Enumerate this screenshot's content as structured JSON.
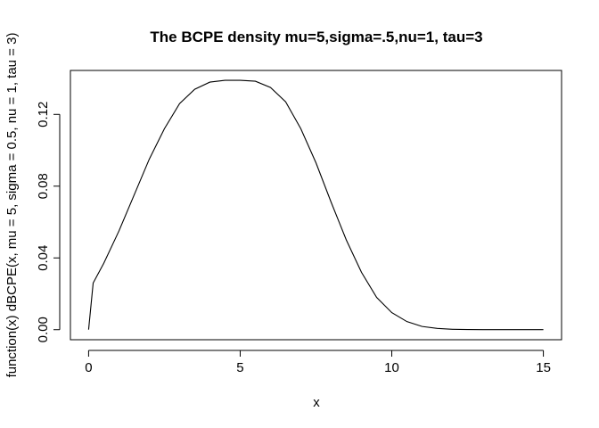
{
  "chart_data": {
    "type": "line",
    "title": "The BCPE  density mu=5,sigma=.5,nu=1, tau=3",
    "xlabel": "x",
    "ylabel": "function(x) dBCPE(x, mu = 5, sigma = 0.5, nu = 1, tau = 3)",
    "xlim": [
      -0.6,
      15.6
    ],
    "ylim": [
      -0.0056,
      0.1445
    ],
    "x_ticks": [
      0,
      5,
      10,
      15
    ],
    "x_tick_labels": [
      "0",
      "5",
      "10",
      "15"
    ],
    "y_ticks": [
      0.0,
      0.04,
      0.08,
      0.12
    ],
    "y_tick_labels": [
      "0.00",
      "0.04",
      "0.08",
      "0.12"
    ],
    "grid": false,
    "legend": "none",
    "series": [
      {
        "x": [
          0,
          0.15,
          0.5,
          1,
          1.5,
          2,
          2.5,
          3,
          3.5,
          4,
          4.5,
          5,
          5.5,
          6,
          6.5,
          7,
          7.5,
          8,
          8.5,
          9,
          9.5,
          10,
          10.5,
          11,
          11.5,
          12,
          12.5,
          13,
          14,
          15
        ],
        "y": [
          0.0,
          0.026,
          0.037,
          0.055,
          0.075,
          0.095,
          0.112,
          0.126,
          0.134,
          0.138,
          0.139,
          0.139,
          0.1385,
          0.135,
          0.127,
          0.112,
          0.093,
          0.071,
          0.05,
          0.032,
          0.018,
          0.0095,
          0.0045,
          0.0018,
          0.0007,
          0.0002,
          0.0001,
          0.0,
          0.0,
          0.0
        ]
      }
    ]
  }
}
